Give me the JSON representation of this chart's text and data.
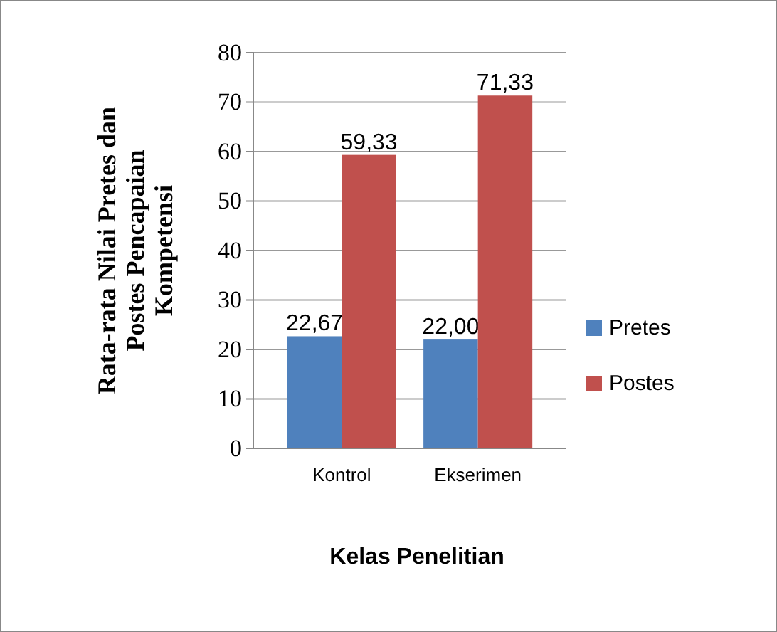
{
  "chart_data": {
    "type": "bar",
    "xlabel": "Kelas Penelitian",
    "ylabel": "Rata-rata Nilai Pretes dan Postes Pencapaian Kompetensi",
    "categories": [
      "Kontrol",
      "Ekserimen"
    ],
    "series": [
      {
        "name": "Pretes",
        "color": "#4f81bd",
        "values": [
          22.67,
          22.0
        ],
        "value_labels": [
          "22,67",
          "22,00"
        ]
      },
      {
        "name": "Postes",
        "color": "#c0504d",
        "values": [
          59.33,
          71.33
        ],
        "value_labels": [
          "59,33",
          "71,33"
        ]
      }
    ],
    "ylim": [
      0,
      80
    ],
    "yticks": [
      0,
      10,
      20,
      30,
      40,
      50,
      60,
      70,
      80
    ],
    "grid": "y",
    "legend": "right"
  }
}
